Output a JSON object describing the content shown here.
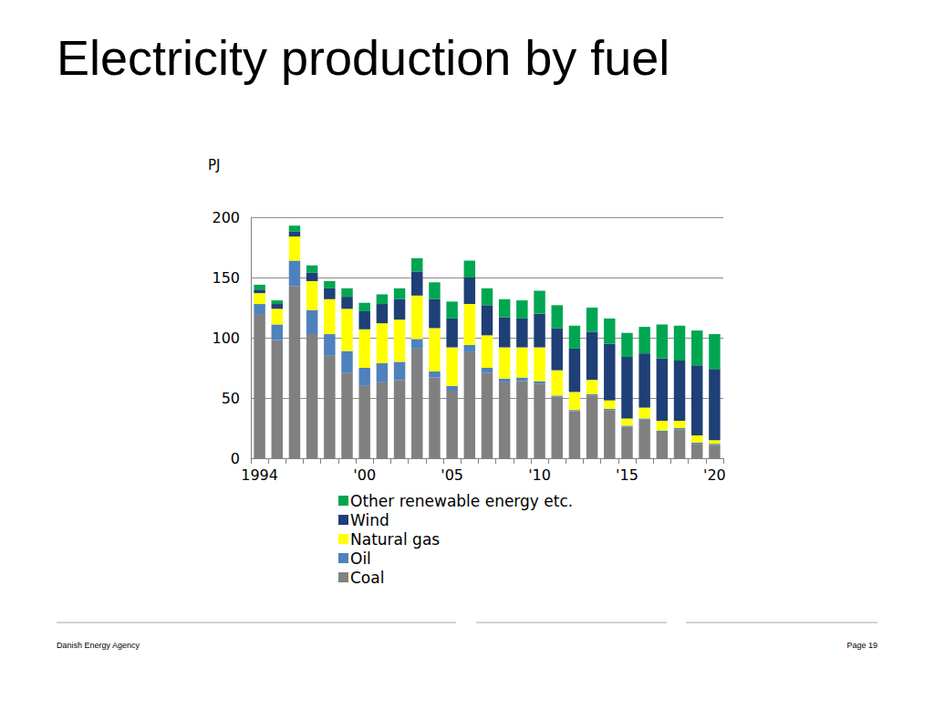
{
  "chart_data": {
    "type": "bar",
    "title": "Electricity production by fuel",
    "y_label": "PJ",
    "categories": [
      "1994",
      null,
      null,
      null,
      null,
      null,
      "'00",
      null,
      null,
      null,
      null,
      "'05",
      null,
      null,
      null,
      null,
      "'10",
      null,
      null,
      null,
      null,
      "'15",
      null,
      null,
      null,
      null,
      "'20"
    ],
    "series": [
      {
        "name": "Other renewable energy etc.",
        "color": "#00a651",
        "values": [
          4,
          3,
          5,
          6,
          6,
          7,
          7,
          8,
          9,
          11,
          14,
          14,
          14,
          14,
          15,
          15,
          19,
          19,
          19,
          20,
          21,
          20,
          22,
          28,
          29,
          29,
          29
        ]
      },
      {
        "name": "Wind",
        "color": "#1f3f77",
        "values": [
          3,
          4,
          4,
          7,
          9,
          10,
          15,
          16,
          17,
          20,
          24,
          24,
          22,
          25,
          25,
          24,
          28,
          35,
          36,
          40,
          47,
          51,
          45,
          52,
          50,
          58,
          59
        ]
      },
      {
        "name": "Natural gas",
        "color": "#ffff00",
        "values": [
          9,
          13,
          20,
          24,
          29,
          35,
          32,
          33,
          35,
          36,
          36,
          32,
          34,
          27,
          26,
          25,
          28,
          21,
          15,
          12,
          7,
          6,
          9,
          8,
          6,
          6,
          3
        ]
      },
      {
        "name": "Oil",
        "color": "#4f81bd",
        "values": [
          9,
          13,
          21,
          20,
          18,
          18,
          15,
          16,
          15,
          8,
          5,
          4,
          6,
          4,
          3,
          3,
          2,
          1,
          1,
          1,
          1,
          1,
          1,
          1,
          1,
          1,
          1
        ]
      },
      {
        "name": "Coal",
        "color": "#808080",
        "values": [
          119,
          98,
          143,
          103,
          85,
          71,
          60,
          63,
          65,
          91,
          67,
          56,
          88,
          71,
          63,
          64,
          62,
          51,
          39,
          52,
          40,
          26,
          32,
          22,
          24,
          12,
          11
        ]
      }
    ],
    "stacked": true,
    "ylim": [
      0,
      200
    ],
    "yticks": [
      0,
      50,
      100,
      150,
      200
    ],
    "grid": true,
    "legend": "bottom"
  },
  "footer": {
    "source": "Danish Energy Agency",
    "page": "Page 19"
  }
}
